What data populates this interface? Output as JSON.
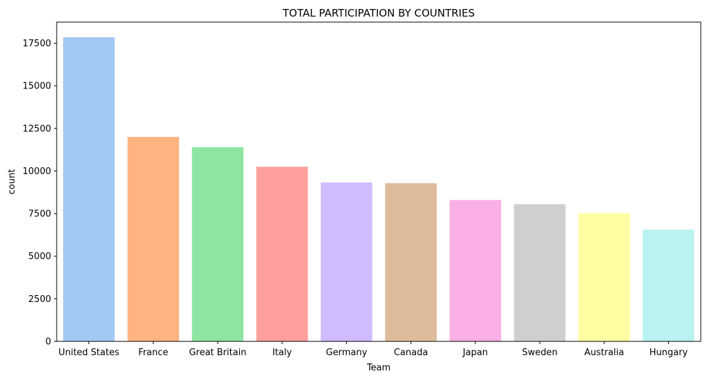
{
  "chart_data": {
    "type": "bar",
    "title": "TOTAL PARTICIPATION BY COUNTRIES",
    "xlabel": "Team",
    "ylabel": "count",
    "categories": [
      "United States",
      "France",
      "Great Britain",
      "Italy",
      "Germany",
      "Canada",
      "Japan",
      "Sweden",
      "Australia",
      "Hungary"
    ],
    "values": [
      17847,
      12002,
      11392,
      10250,
      9326,
      9281,
      8296,
      8054,
      7525,
      6560
    ],
    "colors": [
      "#a1c9f4",
      "#ffb482",
      "#8de5a1",
      "#ff9f9b",
      "#d0bbff",
      "#debb9b",
      "#fab0e4",
      "#cfcfcf",
      "#fffea3",
      "#b9f2f0"
    ],
    "ylim": [
      0,
      18739
    ],
    "yticks": [
      0,
      2500,
      5000,
      7500,
      10000,
      12500,
      15000,
      17500
    ],
    "ytick_labels": [
      "0",
      "2500",
      "5000",
      "7500",
      "10000",
      "12500",
      "15000",
      "17500"
    ],
    "grid": false,
    "legend": "none"
  }
}
